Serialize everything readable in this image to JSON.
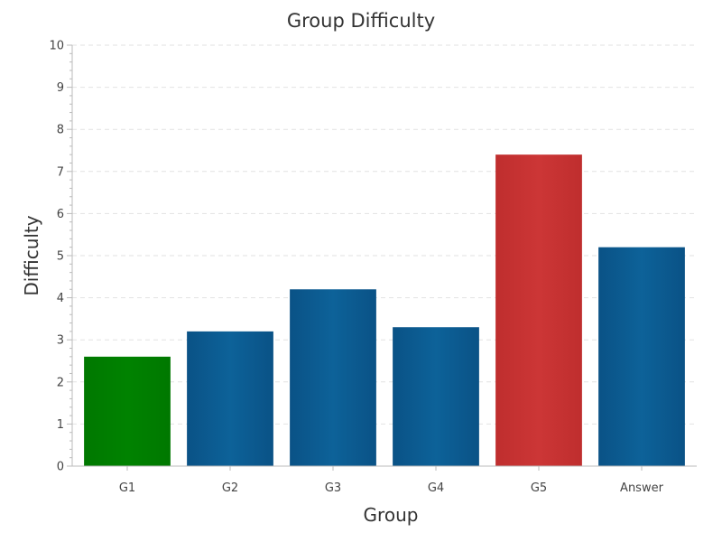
{
  "chart_data": {
    "type": "bar",
    "title": "Group Difficulty",
    "xlabel": "Group",
    "ylabel": "Difficulty",
    "categories": [
      "G1",
      "G2",
      "G3",
      "G4",
      "G5",
      "Answer"
    ],
    "values": [
      2.6,
      3.2,
      4.2,
      3.3,
      7.4,
      5.2
    ],
    "colors": [
      "#007a00",
      "#0b5a8e",
      "#0b5a8e",
      "#0b5a8e",
      "#c83232",
      "#0b5a8e"
    ],
    "ylim": [
      0,
      10
    ],
    "yticks": [
      0,
      1,
      2,
      3,
      4,
      5,
      6,
      7,
      8,
      9,
      10
    ],
    "grid": true,
    "legend": "none"
  }
}
